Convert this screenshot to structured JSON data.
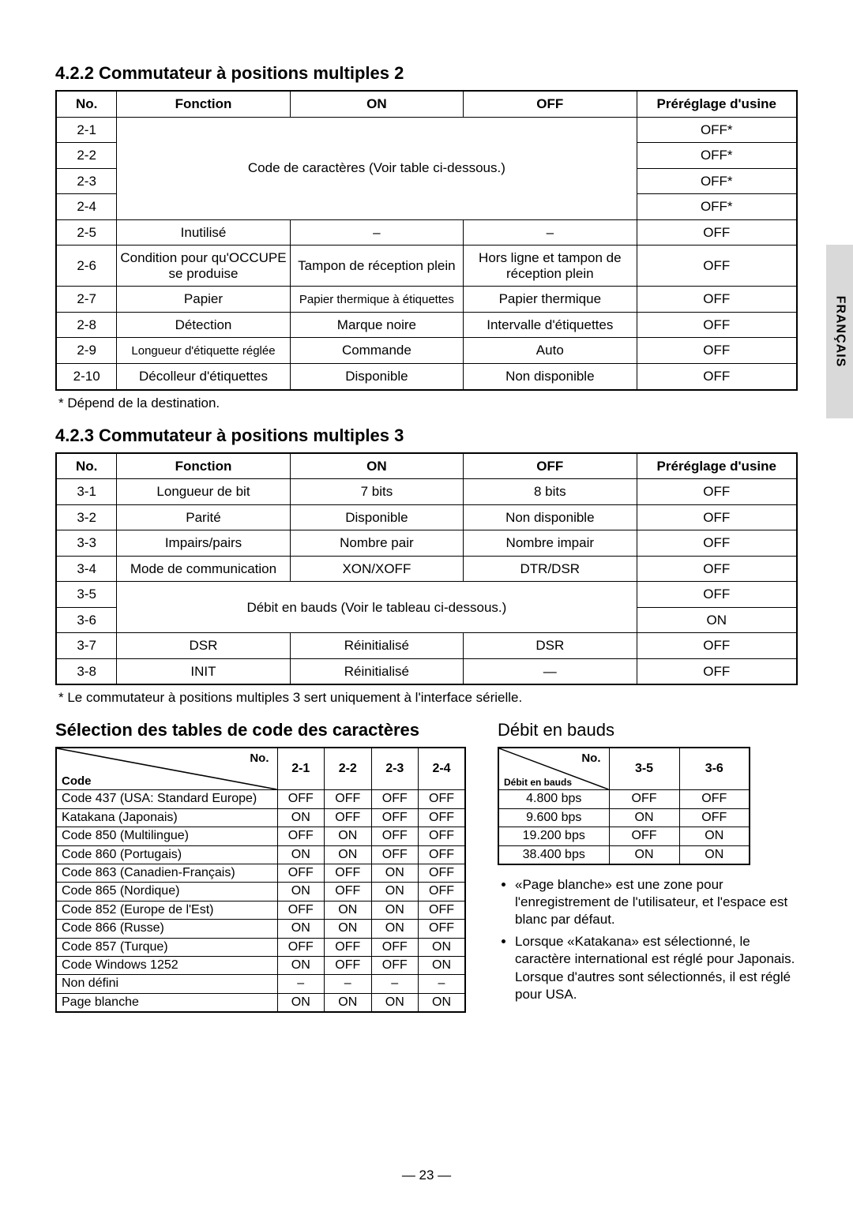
{
  "sideTab": "FRANÇAIS",
  "pageNumber": "— 23 —",
  "section422": {
    "title": "4.2.2 Commutateur à positions multiples 2",
    "footnote": "*  Dépend de la destination.",
    "headers": [
      "No.",
      "Fonction",
      "ON",
      "OFF",
      "Préréglage d'usine"
    ],
    "mergedNote": "Code de caractères (Voir table ci-dessous.)",
    "rowsTop": [
      {
        "no": "2-1",
        "def": "OFF*"
      },
      {
        "no": "2-2",
        "def": "OFF*"
      },
      {
        "no": "2-3",
        "def": "OFF*"
      },
      {
        "no": "2-4",
        "def": "OFF*"
      }
    ],
    "rows": [
      {
        "no": "2-5",
        "fn": "Inutilisé",
        "on": "–",
        "off": "–",
        "def": "OFF"
      },
      {
        "no": "2-6",
        "fn": "Condition pour qu'OCCUPE se produise",
        "on": "Tampon de réception plein",
        "off": "Hors ligne et tampon de réception plein",
        "def": "OFF"
      },
      {
        "no": "2-7",
        "fn": "Papier",
        "on": "Papier thermique à étiquettes",
        "off": "Papier thermique",
        "def": "OFF"
      },
      {
        "no": "2-8",
        "fn": "Détection",
        "on": "Marque noire",
        "off": "Intervalle d'étiquettes",
        "def": "OFF"
      },
      {
        "no": "2-9",
        "fn": "Longueur d'étiquette réglée",
        "on": "Commande",
        "off": "Auto",
        "def": "OFF"
      },
      {
        "no": "2-10",
        "fn": "Décolleur d'étiquettes",
        "on": "Disponible",
        "off": "Non disponible",
        "def": "OFF"
      }
    ]
  },
  "section423": {
    "title": "4.2.3 Commutateur à positions multiples 3",
    "footnote": "*  Le commutateur à positions multiples 3 sert uniquement à l'interface sérielle.",
    "headers": [
      "No.",
      "Fonction",
      "ON",
      "OFF",
      "Préréglage d'usine"
    ],
    "mergedNote": "Débit en bauds (Voir le tableau ci-dessous.)",
    "rowsTop": [
      {
        "no": "3-1",
        "fn": "Longueur de bit",
        "on": "7 bits",
        "off": "8 bits",
        "def": "OFF"
      },
      {
        "no": "3-2",
        "fn": "Parité",
        "on": "Disponible",
        "off": "Non disponible",
        "def": "OFF"
      },
      {
        "no": "3-3",
        "fn": "Impairs/pairs",
        "on": "Nombre pair",
        "off": "Nombre impair",
        "def": "OFF"
      },
      {
        "no": "3-4",
        "fn": "Mode de communication",
        "on": "XON/XOFF",
        "off": "DTR/DSR",
        "def": "OFF"
      }
    ],
    "rowsMid": [
      {
        "no": "3-5",
        "def": "OFF"
      },
      {
        "no": "3-6",
        "def": "ON"
      }
    ],
    "rowsBot": [
      {
        "no": "3-7",
        "fn": "DSR",
        "on": "Réinitialisé",
        "off": "DSR",
        "def": "OFF"
      },
      {
        "no": "3-8",
        "fn": "INIT",
        "on": "Réinitialisé",
        "off": "—",
        "def": "OFF"
      }
    ]
  },
  "codeTable": {
    "title": "Sélection des tables de code des caractères",
    "diagTop": "No.",
    "diagLeft": "Code",
    "cols": [
      "2-1",
      "2-2",
      "2-3",
      "2-4"
    ],
    "rows": [
      {
        "l": "Code 437 (USA: Standard Europe)",
        "v": [
          "OFF",
          "OFF",
          "OFF",
          "OFF"
        ]
      },
      {
        "l": "Katakana (Japonais)",
        "v": [
          "ON",
          "OFF",
          "OFF",
          "OFF"
        ]
      },
      {
        "l": "Code 850 (Multilingue)",
        "v": [
          "OFF",
          "ON",
          "OFF",
          "OFF"
        ]
      },
      {
        "l": "Code 860 (Portugais)",
        "v": [
          "ON",
          "ON",
          "OFF",
          "OFF"
        ]
      },
      {
        "l": "Code 863 (Canadien-Français)",
        "v": [
          "OFF",
          "OFF",
          "ON",
          "OFF"
        ]
      },
      {
        "l": "Code 865 (Nordique)",
        "v": [
          "ON",
          "OFF",
          "ON",
          "OFF"
        ]
      },
      {
        "l": "Code 852 (Europe de l'Est)",
        "v": [
          "OFF",
          "ON",
          "ON",
          "OFF"
        ]
      },
      {
        "l": "Code 866 (Russe)",
        "v": [
          "ON",
          "ON",
          "ON",
          "OFF"
        ]
      },
      {
        "l": "Code 857 (Turque)",
        "v": [
          "OFF",
          "OFF",
          "OFF",
          "ON"
        ]
      },
      {
        "l": "Code Windows 1252",
        "v": [
          "ON",
          "OFF",
          "OFF",
          "ON"
        ]
      },
      {
        "l": "Non défini",
        "v": [
          "–",
          "–",
          "–",
          "–"
        ]
      },
      {
        "l": "Page blanche",
        "v": [
          "ON",
          "ON",
          "ON",
          "ON"
        ]
      }
    ]
  },
  "baudTable": {
    "title": "Débit en bauds",
    "diagTop": "No.",
    "diagLeft": "Débit en bauds",
    "cols": [
      "3-5",
      "3-6"
    ],
    "rows": [
      {
        "l": "4.800 bps",
        "v": [
          "OFF",
          "OFF"
        ]
      },
      {
        "l": "9.600 bps",
        "v": [
          "ON",
          "OFF"
        ]
      },
      {
        "l": "19.200 bps",
        "v": [
          "OFF",
          "ON"
        ]
      },
      {
        "l": "38.400 bps",
        "v": [
          "ON",
          "ON"
        ]
      }
    ]
  },
  "notes": [
    "«Page blanche» est une zone pour l'enregistrement de l'utilisateur, et l'espace est blanc par défaut.",
    "Lorsque «Katakana» est sélectionné, le caractère international est réglé pour Japonais. Lorsque d'autres sont sélectionnés, il est réglé pour USA."
  ]
}
